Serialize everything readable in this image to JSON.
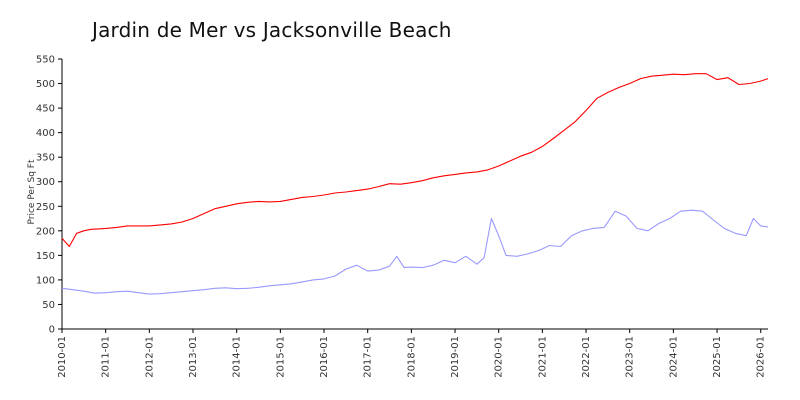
{
  "chart_data": {
    "type": "line",
    "title": "Jardin de Mer vs Jacksonville Beach",
    "xlabel": "",
    "ylabel": "Price Per Sq Ft",
    "ylim": [
      0,
      550
    ],
    "xlim": [
      "2010-01",
      "2026-03"
    ],
    "grid": false,
    "legend": "none",
    "y_ticks": [
      "0",
      "50",
      "100",
      "150",
      "200",
      "250",
      "300",
      "350",
      "400",
      "450",
      "500",
      "550"
    ],
    "x_ticks": [
      "2010-01",
      "2011-01",
      "2012-01",
      "2013-01",
      "2014-01",
      "2015-01",
      "2016-01",
      "2017-01",
      "2018-01",
      "2019-01",
      "2020-01",
      "2021-01",
      "2022-01",
      "2023-01",
      "2024-01",
      "2025-01",
      "2026-01"
    ],
    "series": [
      {
        "color": "#ff0000",
        "points": [
          [
            "2010-01",
            185
          ],
          [
            "2010-03",
            168
          ],
          [
            "2010-05",
            195
          ],
          [
            "2010-07",
            200
          ],
          [
            "2010-09",
            203
          ],
          [
            "2010-11",
            204
          ],
          [
            "2011-01",
            205
          ],
          [
            "2011-04",
            207
          ],
          [
            "2011-07",
            210
          ],
          [
            "2011-10",
            210
          ],
          [
            "2012-01",
            210
          ],
          [
            "2012-04",
            212
          ],
          [
            "2012-07",
            214
          ],
          [
            "2012-10",
            218
          ],
          [
            "2013-01",
            225
          ],
          [
            "2013-04",
            235
          ],
          [
            "2013-07",
            245
          ],
          [
            "2013-10",
            250
          ],
          [
            "2014-01",
            255
          ],
          [
            "2014-04",
            258
          ],
          [
            "2014-07",
            260
          ],
          [
            "2014-10",
            259
          ],
          [
            "2015-01",
            260
          ],
          [
            "2015-04",
            264
          ],
          [
            "2015-07",
            268
          ],
          [
            "2015-10",
            270
          ],
          [
            "2016-01",
            273
          ],
          [
            "2016-04",
            277
          ],
          [
            "2016-07",
            279
          ],
          [
            "2016-10",
            282
          ],
          [
            "2017-01",
            285
          ],
          [
            "2017-04",
            290
          ],
          [
            "2017-07",
            296
          ],
          [
            "2017-10",
            295
          ],
          [
            "2018-01",
            298
          ],
          [
            "2018-04",
            302
          ],
          [
            "2018-07",
            308
          ],
          [
            "2018-10",
            312
          ],
          [
            "2019-01",
            315
          ],
          [
            "2019-04",
            318
          ],
          [
            "2019-07",
            320
          ],
          [
            "2019-10",
            324
          ],
          [
            "2020-01",
            332
          ],
          [
            "2020-04",
            342
          ],
          [
            "2020-07",
            352
          ],
          [
            "2020-10",
            360
          ],
          [
            "2021-01",
            372
          ],
          [
            "2021-04",
            388
          ],
          [
            "2021-07",
            405
          ],
          [
            "2021-10",
            422
          ],
          [
            "2022-01",
            445
          ],
          [
            "2022-04",
            470
          ],
          [
            "2022-07",
            482
          ],
          [
            "2022-10",
            492
          ],
          [
            "2023-01",
            500
          ],
          [
            "2023-04",
            510
          ],
          [
            "2023-07",
            515
          ],
          [
            "2023-10",
            517
          ],
          [
            "2024-01",
            519
          ],
          [
            "2024-04",
            518
          ],
          [
            "2024-07",
            520
          ],
          [
            "2024-10",
            520
          ],
          [
            "2025-01",
            508
          ],
          [
            "2025-04",
            512
          ],
          [
            "2025-07",
            498
          ],
          [
            "2025-10",
            500
          ],
          [
            "2026-01",
            505
          ],
          [
            "2026-03",
            510
          ]
        ]
      },
      {
        "color": "#9999ff",
        "points": [
          [
            "2010-01",
            83
          ],
          [
            "2010-04",
            80
          ],
          [
            "2010-07",
            77
          ],
          [
            "2010-10",
            73
          ],
          [
            "2011-01",
            74
          ],
          [
            "2011-04",
            76
          ],
          [
            "2011-07",
            77
          ],
          [
            "2011-10",
            74
          ],
          [
            "2012-01",
            71
          ],
          [
            "2012-04",
            72
          ],
          [
            "2012-07",
            74
          ],
          [
            "2012-10",
            76
          ],
          [
            "2013-01",
            78
          ],
          [
            "2013-04",
            80
          ],
          [
            "2013-07",
            83
          ],
          [
            "2013-10",
            84
          ],
          [
            "2014-01",
            82
          ],
          [
            "2014-04",
            83
          ],
          [
            "2014-07",
            85
          ],
          [
            "2014-10",
            88
          ],
          [
            "2015-01",
            90
          ],
          [
            "2015-04",
            92
          ],
          [
            "2015-07",
            96
          ],
          [
            "2015-10",
            100
          ],
          [
            "2016-01",
            102
          ],
          [
            "2016-04",
            108
          ],
          [
            "2016-07",
            122
          ],
          [
            "2016-10",
            130
          ],
          [
            "2017-01",
            118
          ],
          [
            "2017-04",
            120
          ],
          [
            "2017-07",
            128
          ],
          [
            "2017-09",
            148
          ],
          [
            "2017-11",
            125
          ],
          [
            "2018-01",
            126
          ],
          [
            "2018-04",
            125
          ],
          [
            "2018-07",
            130
          ],
          [
            "2018-10",
            140
          ],
          [
            "2019-01",
            135
          ],
          [
            "2019-04",
            148
          ],
          [
            "2019-07",
            132
          ],
          [
            "2019-09",
            145
          ],
          [
            "2019-11",
            225
          ],
          [
            "2020-01",
            190
          ],
          [
            "2020-03",
            150
          ],
          [
            "2020-06",
            148
          ],
          [
            "2020-09",
            153
          ],
          [
            "2020-12",
            160
          ],
          [
            "2021-03",
            170
          ],
          [
            "2021-06",
            168
          ],
          [
            "2021-09",
            190
          ],
          [
            "2021-12",
            200
          ],
          [
            "2022-03",
            205
          ],
          [
            "2022-06",
            207
          ],
          [
            "2022-09",
            240
          ],
          [
            "2022-12",
            230
          ],
          [
            "2023-03",
            205
          ],
          [
            "2023-06",
            200
          ],
          [
            "2023-09",
            215
          ],
          [
            "2023-12",
            225
          ],
          [
            "2024-03",
            240
          ],
          [
            "2024-06",
            242
          ],
          [
            "2024-09",
            240
          ],
          [
            "2024-12",
            222
          ],
          [
            "2025-03",
            205
          ],
          [
            "2025-06",
            195
          ],
          [
            "2025-09",
            190
          ],
          [
            "2025-11",
            225
          ],
          [
            "2026-01",
            210
          ],
          [
            "2026-03",
            208
          ]
        ]
      }
    ]
  }
}
